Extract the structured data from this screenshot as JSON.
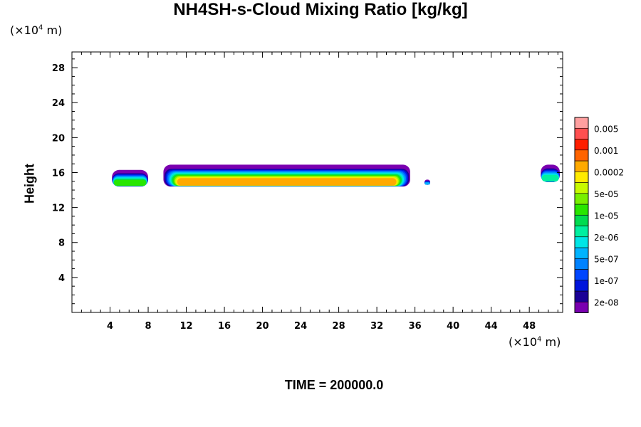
{
  "chart_data": {
    "type": "contour",
    "title": "NH4SH-s-Cloud Mixing Ratio [kg/kg]",
    "ylabel": "Height",
    "x_unit": {
      "prefix": "(×10",
      "exp": "4",
      "suffix": " m)"
    },
    "y_unit": {
      "prefix": "(×10",
      "exp": "4",
      "suffix": " m)"
    },
    "xlim": [
      0,
      51.5
    ],
    "ylim": [
      0,
      29.8
    ],
    "x_ticks": [
      4,
      8,
      12,
      16,
      20,
      24,
      28,
      32,
      36,
      40,
      44,
      48
    ],
    "y_ticks": [
      4,
      8,
      12,
      16,
      20,
      24,
      28
    ],
    "legend": {
      "placement": "right",
      "colors": [
        "#7a00b0",
        "#1a0096",
        "#0014dc",
        "#0046ff",
        "#0082ff",
        "#00b4ff",
        "#00e6e6",
        "#00f0a0",
        "#00dc50",
        "#28e600",
        "#78f000",
        "#c8fa00",
        "#ffeb00",
        "#ffaa00",
        "#ff6400",
        "#ff1e00",
        "#ff5050",
        "#ffa0a0"
      ],
      "labels": [
        "2e-08",
        "1e-07",
        "5e-07",
        "2e-06",
        "1e-05",
        "5e-05",
        "0.0002",
        "0.001",
        "0.005"
      ]
    },
    "cloud_regions": [
      {
        "x_range": [
          4.2,
          8.0
        ],
        "y_range": [
          14.4,
          16.3
        ],
        "peak_level": "1e-05"
      },
      {
        "x_range": [
          9.6,
          35.5
        ],
        "y_range": [
          14.4,
          16.9
        ],
        "peak_level": "0.0002"
      },
      {
        "x_range": [
          37.0,
          37.6
        ],
        "y_range": [
          14.6,
          15.2
        ],
        "peak_level": "5e-07"
      },
      {
        "x_range": [
          49.2,
          51.2
        ],
        "y_range": [
          14.9,
          16.9
        ],
        "peak_level": "2e-06"
      }
    ],
    "annotation": "TIME = 200000.0"
  }
}
